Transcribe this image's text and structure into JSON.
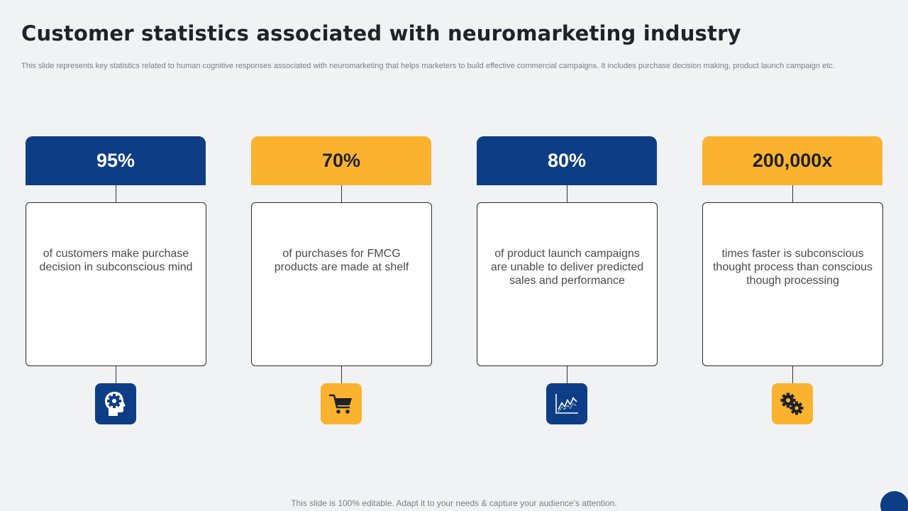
{
  "slide": {
    "title": "Customer statistics associated with neuromarketing industry",
    "subtitle": "This slide represents key statistics related to human cognitive responses associated with neuromarketing that helps marketers to build effective commercial campaigns. It includes purchase decision making, product launch campaign etc.",
    "footer": "This slide is 100% editable. Adapt it to your needs & capture your audience’s attention."
  },
  "colors": {
    "blue": "#0d3d85",
    "yellow": "#fbb22f",
    "background": "#f1f2f4"
  },
  "stats": [
    {
      "value": "95%",
      "description": "of customers make purchase decision in subconscious mind",
      "color": "blue",
      "icon": "head-gear-icon"
    },
    {
      "value": "70%",
      "description": "of purchases for FMCG products are made at shelf",
      "color": "yellow",
      "icon": "shopping-cart-icon"
    },
    {
      "value": "80%",
      "description": "of product launch  campaigns are unable to deliver predicted sales and performance",
      "color": "blue",
      "icon": "line-chart-icon"
    },
    {
      "value": "200,000x",
      "description": "times faster is subconscious thought  process than conscious though processing",
      "color": "yellow",
      "icon": "gears-icon"
    }
  ]
}
